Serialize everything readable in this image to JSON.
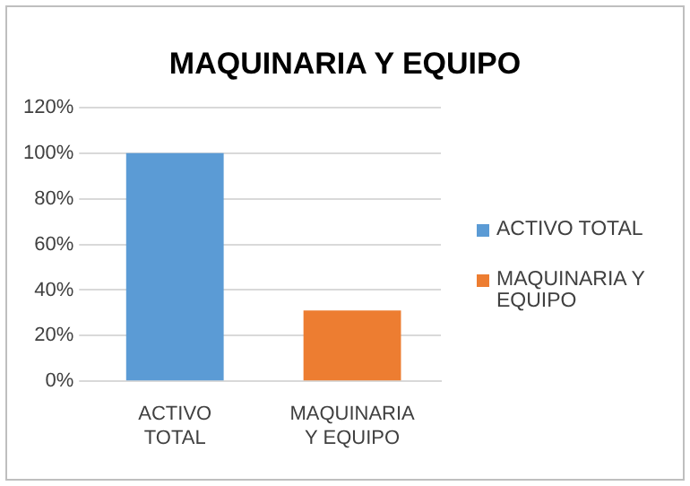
{
  "chart_data": {
    "type": "bar",
    "title": "MAQUINARIA Y EQUIPO",
    "categories": [
      "ACTIVO TOTAL",
      "MAQUINARIA Y EQUIPO"
    ],
    "series": [
      {
        "name": "ACTIVO TOTAL",
        "color": "#5b9bd5",
        "values": [
          100,
          null
        ]
      },
      {
        "name": "MAQUINARIA Y EQUIPO",
        "color": "#ed7d31",
        "values": [
          null,
          31
        ]
      }
    ],
    "ylim": [
      0,
      120
    ],
    "yticks": [
      {
        "value": 0,
        "label": "0%"
      },
      {
        "value": 20,
        "label": "20%"
      },
      {
        "value": 40,
        "label": "40%"
      },
      {
        "value": 60,
        "label": "60%"
      },
      {
        "value": 80,
        "label": "80%"
      },
      {
        "value": 100,
        "label": "100%"
      },
      {
        "value": 120,
        "label": "120%"
      }
    ],
    "grid": "y",
    "legend": "right"
  }
}
